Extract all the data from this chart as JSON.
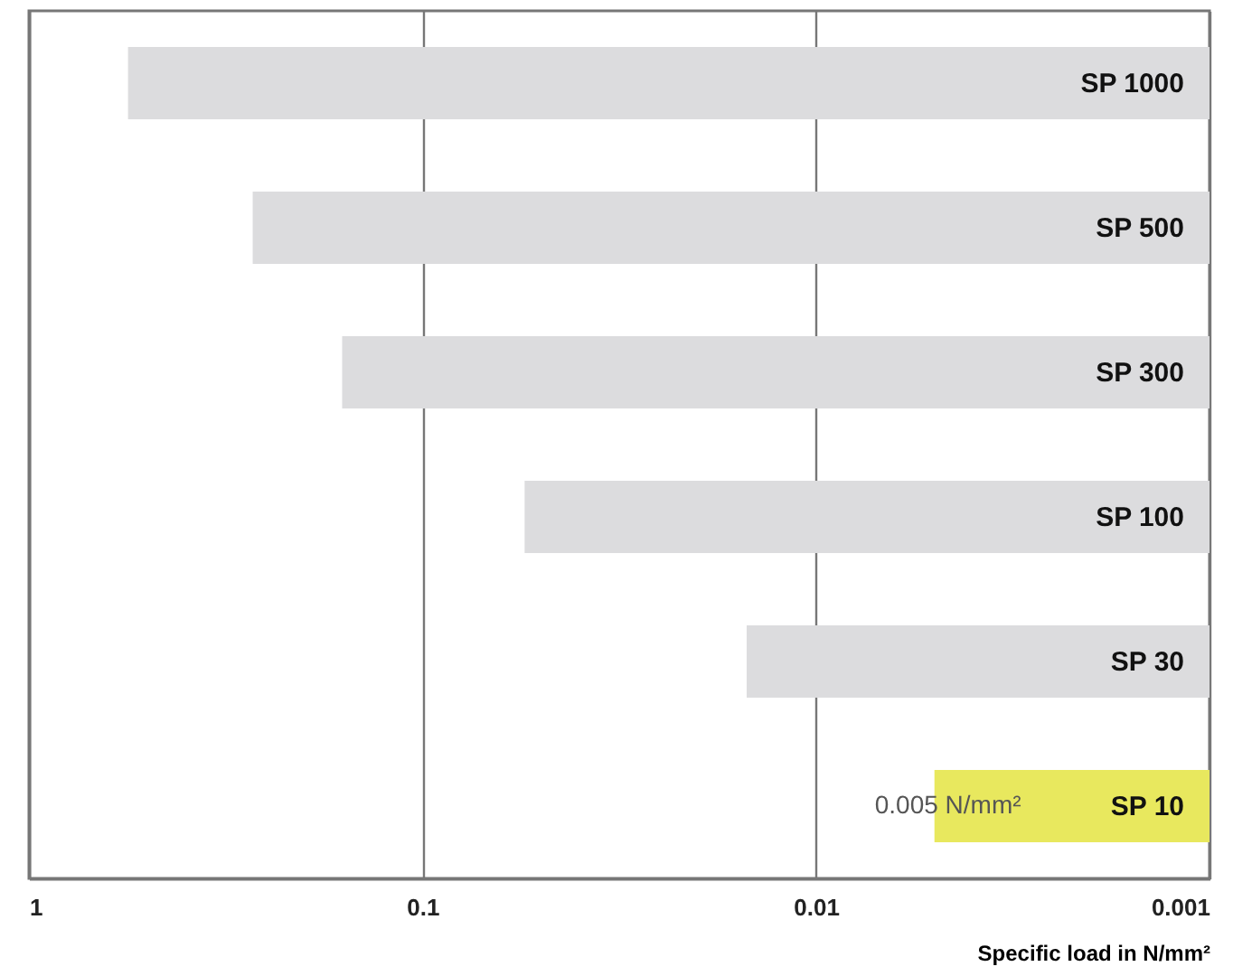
{
  "chart_data": {
    "type": "bar",
    "orientation": "horizontal",
    "log": "x",
    "xlabel": "Specific load in N/mm²",
    "categories": [
      "SP 1000",
      "SP 500",
      "SP 300",
      "SP 100",
      "SP 30",
      "SP 10"
    ],
    "values": [
      0.56,
      0.27,
      0.16,
      0.055,
      0.015,
      0.005
    ],
    "colors": [
      "#dcdcde",
      "#dcdcde",
      "#dcdcde",
      "#dcdcde",
      "#dcdcde",
      "#e8e85e"
    ],
    "xlim": [
      1,
      0.001
    ],
    "xticks": [
      1,
      0.1,
      0.01,
      0.001
    ],
    "grid": "x",
    "annotations": [
      {
        "text": "0.005 N/mm²",
        "x": 0.005,
        "y": "SP 10"
      }
    ]
  }
}
